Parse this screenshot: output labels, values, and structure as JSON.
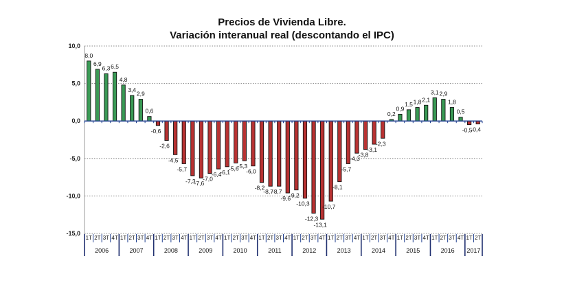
{
  "chart_data": {
    "type": "bar",
    "title": "Precios de Vivienda Libre.",
    "subtitle": "Variación interanual real (descontando el IPC)",
    "xlabel": "",
    "ylabel": "",
    "ylim": [
      -15,
      10
    ],
    "yticks": [
      10,
      5,
      0,
      -5,
      -10,
      -15
    ],
    "ytick_labels": [
      "10,0",
      "5,0",
      "0,0",
      "-5,0",
      "-10,0",
      "-15,0"
    ],
    "grid": true,
    "positive_color": "#3a9a55",
    "negative_color": "#b83232",
    "years": [
      "2006",
      "2007",
      "2008",
      "2009",
      "2010",
      "2011",
      "2012",
      "2013",
      "2014",
      "2015",
      "2016",
      "2017"
    ],
    "quarters_per_year": [
      4,
      4,
      4,
      4,
      4,
      4,
      4,
      4,
      4,
      4,
      4,
      2
    ],
    "categories": [
      "2006 1T",
      "2006 2T",
      "2006 3T",
      "2006 4T",
      "2007 1T",
      "2007 2T",
      "2007 3T",
      "2007 4T",
      "2008 1T",
      "2008 2T",
      "2008 3T",
      "2008 4T",
      "2009 1T",
      "2009 2T",
      "2009 3T",
      "2009 4T",
      "2010 1T",
      "2010 2T",
      "2010 3T",
      "2010 4T",
      "2011 1T",
      "2011 2T",
      "2011 3T",
      "2011 4T",
      "2012 1T",
      "2012 2T",
      "2012 3T",
      "2012 4T",
      "2013 1T",
      "2013 2T",
      "2013 3T",
      "2013 4T",
      "2014 1T",
      "2014 2T",
      "2014 3T",
      "2014 4T",
      "2015 1T",
      "2015 2T",
      "2015 3T",
      "2015 4T",
      "2016 1T",
      "2016 2T",
      "2016 3T",
      "2016 4T",
      "2017 1T",
      "2017 2T"
    ],
    "quarter_labels": [
      "1T",
      "2T",
      "3T",
      "4T"
    ],
    "values": [
      8.0,
      6.9,
      6.3,
      6.5,
      4.8,
      3.4,
      2.9,
      0.6,
      -0.6,
      -2.6,
      -4.5,
      -5.7,
      -7.3,
      -7.6,
      -7.0,
      -6.4,
      -6.1,
      -5.6,
      -5.3,
      -6.0,
      -8.2,
      -8.7,
      -8.7,
      -9.6,
      -9.2,
      -10.3,
      -12.3,
      -13.1,
      -10.7,
      -8.1,
      -5.7,
      -4.3,
      -3.8,
      -3.1,
      -2.3,
      0.2,
      0.9,
      1.5,
      1.8,
      2.1,
      3.1,
      2.9,
      1.8,
      0.5,
      -0.5,
      -0.4
    ],
    "value_labels": [
      "8,0",
      "6,9",
      "6,3",
      "6,5",
      "4,8",
      "3,4",
      "2,9",
      "0,6",
      "-0,6",
      "-2,6",
      "-4,5",
      "-5,7",
      "-7,3",
      "-7,6",
      "-7,0",
      "-6,4",
      "-6,1",
      "-5,6",
      "-5,3",
      "-6,0",
      "-8,2",
      "-8,7",
      "-8,7",
      "-9,6",
      "-9,2",
      "-10,3",
      "-12,3",
      "-13,1",
      "-10,7",
      "-8,1",
      "-5,7",
      "-4,3",
      "-3,8",
      "-3,1",
      "-2,3",
      "0,2",
      "0,9",
      "1,5",
      "1,8",
      "2,1",
      "3,1",
      "2,9",
      "1,8",
      "0,5",
      "-0,5",
      "-0,4"
    ]
  }
}
